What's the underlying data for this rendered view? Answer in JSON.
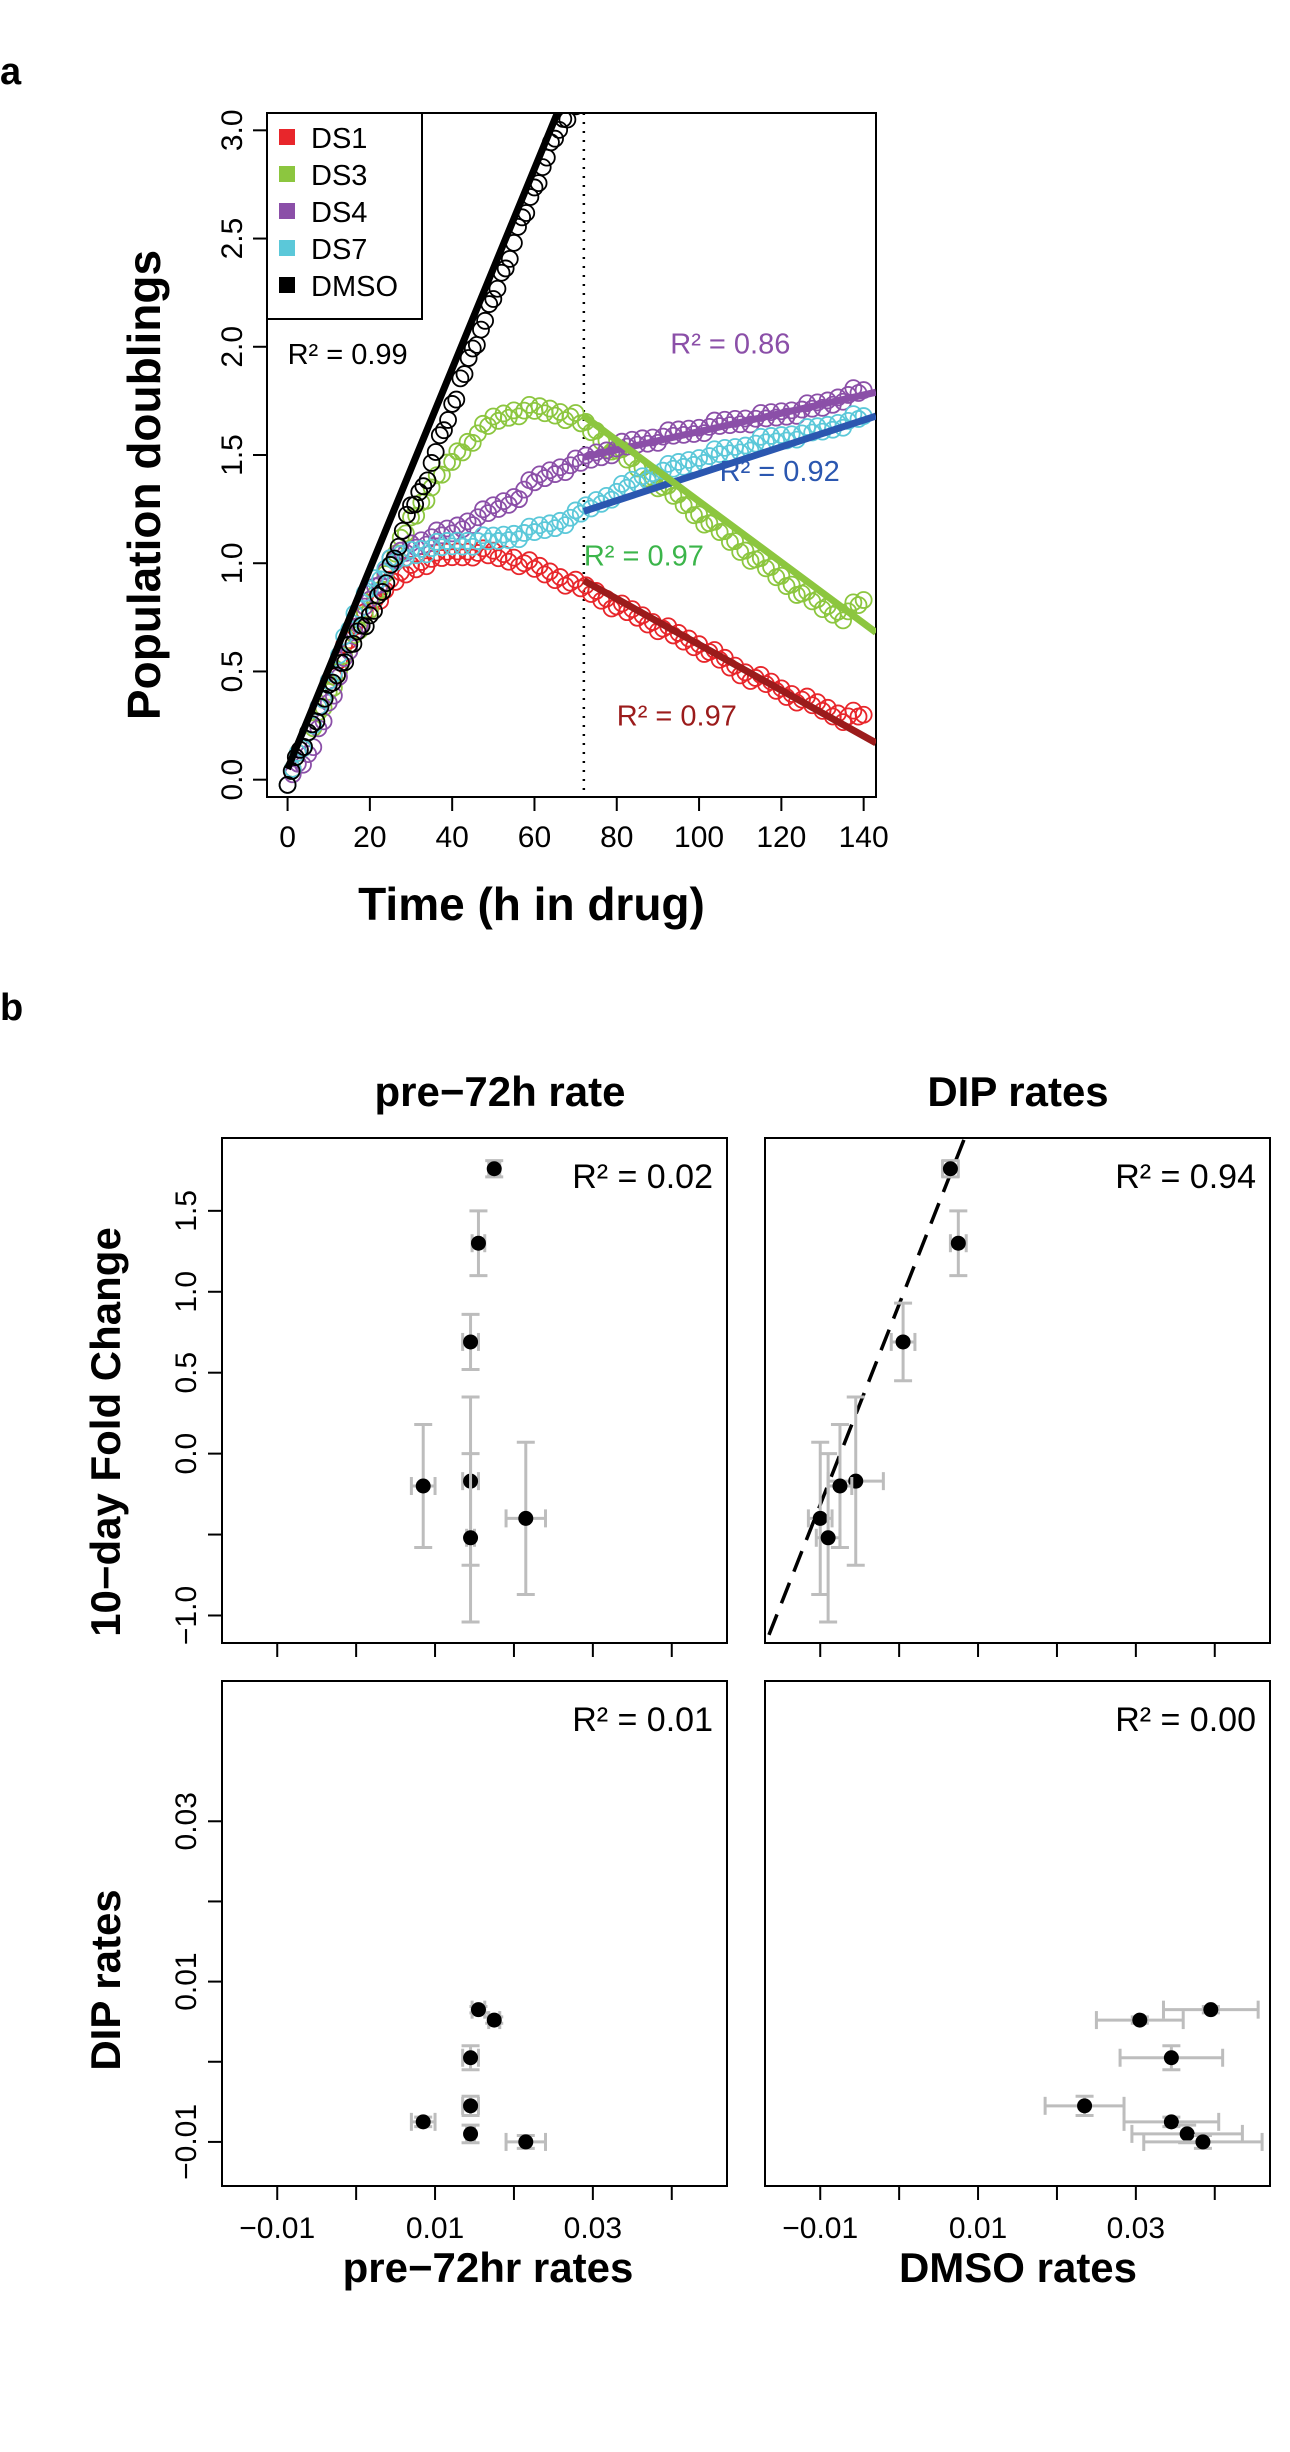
{
  "panel_labels": {
    "a": "a",
    "b": "b"
  },
  "chart_data": [
    {
      "id": "panel-a",
      "type": "scatter",
      "xlabel": "Time (h in drug)",
      "ylabel": "Population doublings",
      "xlim": [
        -5,
        143
      ],
      "ylim": [
        -0.08,
        3.08
      ],
      "xticks": [
        0,
        20,
        40,
        60,
        80,
        100,
        120,
        140
      ],
      "yticks": [
        0.0,
        0.5,
        1.0,
        1.5,
        2.0,
        2.5,
        3.0
      ],
      "tick_labels_y": [
        "0.0",
        "0.5",
        "1.0",
        "1.5",
        "2.0",
        "2.5",
        "3.0"
      ],
      "vline_x": 72,
      "legend": {
        "placement": "top-left",
        "entries": [
          {
            "name": "DS1",
            "color": "#e8262b"
          },
          {
            "name": "DS3",
            "color": "#8cc63f"
          },
          {
            "name": "DS4",
            "color": "#8b4fa8"
          },
          {
            "name": "DS7",
            "color": "#5bc8d9"
          },
          {
            "name": "DMSO",
            "color": "#000000"
          }
        ]
      },
      "series": [
        {
          "name": "DS1",
          "color": "#e8262b",
          "points": [
            [
              0,
              0
            ],
            [
              5,
              0.2
            ],
            [
              10,
              0.45
            ],
            [
              15,
              0.65
            ],
            [
              20,
              0.8
            ],
            [
              25,
              0.9
            ],
            [
              30,
              0.98
            ],
            [
              35,
              1.02
            ],
            [
              40,
              1.04
            ],
            [
              45,
              1.05
            ],
            [
              50,
              1.04
            ],
            [
              55,
              1.02
            ],
            [
              60,
              0.98
            ],
            [
              65,
              0.94
            ],
            [
              70,
              0.9
            ],
            [
              75,
              0.86
            ],
            [
              80,
              0.8
            ],
            [
              85,
              0.76
            ],
            [
              90,
              0.71
            ],
            [
              95,
              0.66
            ],
            [
              100,
              0.62
            ],
            [
              105,
              0.56
            ],
            [
              110,
              0.5
            ],
            [
              115,
              0.46
            ],
            [
              120,
              0.41
            ],
            [
              125,
              0.37
            ],
            [
              130,
              0.33
            ],
            [
              135,
              0.29
            ],
            [
              140,
              0.3
            ]
          ]
        },
        {
          "name": "DS3",
          "color": "#8cc63f",
          "points": [
            [
              0,
              0
            ],
            [
              5,
              0.2
            ],
            [
              10,
              0.4
            ],
            [
              15,
              0.6
            ],
            [
              20,
              0.8
            ],
            [
              25,
              1.0
            ],
            [
              30,
              1.2
            ],
            [
              35,
              1.35
            ],
            [
              40,
              1.48
            ],
            [
              45,
              1.58
            ],
            [
              50,
              1.66
            ],
            [
              55,
              1.7
            ],
            [
              60,
              1.71
            ],
            [
              65,
              1.7
            ],
            [
              70,
              1.67
            ],
            [
              75,
              1.6
            ],
            [
              80,
              1.52
            ],
            [
              85,
              1.45
            ],
            [
              90,
              1.37
            ],
            [
              95,
              1.3
            ],
            [
              100,
              1.22
            ],
            [
              105,
              1.15
            ],
            [
              110,
              1.07
            ],
            [
              115,
              1.0
            ],
            [
              120,
              0.93
            ],
            [
              125,
              0.86
            ],
            [
              130,
              0.8
            ],
            [
              135,
              0.76
            ],
            [
              140,
              0.83
            ]
          ]
        },
        {
          "name": "DS4",
          "color": "#8b4fa8",
          "points": [
            [
              0,
              0
            ],
            [
              5,
              0.1
            ],
            [
              10,
              0.35
            ],
            [
              15,
              0.6
            ],
            [
              20,
              0.85
            ],
            [
              25,
              1.0
            ],
            [
              30,
              1.08
            ],
            [
              35,
              1.12
            ],
            [
              40,
              1.15
            ],
            [
              45,
              1.2
            ],
            [
              50,
              1.25
            ],
            [
              55,
              1.3
            ],
            [
              60,
              1.38
            ],
            [
              65,
              1.43
            ],
            [
              70,
              1.46
            ],
            [
              75,
              1.5
            ],
            [
              80,
              1.53
            ],
            [
              85,
              1.56
            ],
            [
              90,
              1.58
            ],
            [
              95,
              1.6
            ],
            [
              100,
              1.62
            ],
            [
              105,
              1.64
            ],
            [
              110,
              1.66
            ],
            [
              115,
              1.67
            ],
            [
              120,
              1.69
            ],
            [
              125,
              1.71
            ],
            [
              130,
              1.73
            ],
            [
              135,
              1.77
            ],
            [
              140,
              1.8
            ]
          ]
        },
        {
          "name": "DS7",
          "color": "#5bc8d9",
          "points": [
            [
              0,
              0
            ],
            [
              5,
              0.2
            ],
            [
              10,
              0.45
            ],
            [
              15,
              0.7
            ],
            [
              20,
              0.9
            ],
            [
              25,
              1.0
            ],
            [
              30,
              1.05
            ],
            [
              35,
              1.07
            ],
            [
              40,
              1.09
            ],
            [
              45,
              1.1
            ],
            [
              50,
              1.11
            ],
            [
              55,
              1.13
            ],
            [
              60,
              1.15
            ],
            [
              65,
              1.18
            ],
            [
              70,
              1.22
            ],
            [
              75,
              1.28
            ],
            [
              80,
              1.33
            ],
            [
              85,
              1.38
            ],
            [
              90,
              1.42
            ],
            [
              95,
              1.45
            ],
            [
              100,
              1.48
            ],
            [
              105,
              1.51
            ],
            [
              110,
              1.53
            ],
            [
              115,
              1.56
            ],
            [
              120,
              1.58
            ],
            [
              125,
              1.6
            ],
            [
              130,
              1.62
            ],
            [
              135,
              1.65
            ],
            [
              140,
              1.68
            ]
          ]
        },
        {
          "name": "DMSO",
          "color": "#000000",
          "points": [
            [
              0,
              0
            ],
            [
              3,
              0.12
            ],
            [
              6,
              0.25
            ],
            [
              9,
              0.38
            ],
            [
              12,
              0.5
            ],
            [
              15,
              0.6
            ],
            [
              18,
              0.7
            ],
            [
              21,
              0.78
            ],
            [
              24,
              0.92
            ],
            [
              27,
              1.1
            ],
            [
              30,
              1.25
            ],
            [
              33,
              1.35
            ],
            [
              36,
              1.52
            ],
            [
              39,
              1.68
            ],
            [
              42,
              1.83
            ],
            [
              45,
              1.98
            ],
            [
              48,
              2.12
            ],
            [
              51,
              2.28
            ],
            [
              54,
              2.43
            ],
            [
              57,
              2.58
            ],
            [
              60,
              2.73
            ],
            [
              63,
              2.88
            ],
            [
              66,
              3.02
            ],
            [
              69,
              3.1
            ],
            [
              72,
              3.15
            ]
          ]
        }
      ],
      "fits": [
        {
          "name": "DMSO",
          "color": "#000000",
          "x": [
            0,
            66
          ],
          "y": [
            0.05,
            3.1
          ],
          "label": "R² =  0.99"
        },
        {
          "name": "DS4",
          "color": "#8b4fa8",
          "x": [
            72,
            143
          ],
          "y": [
            1.49,
            1.79
          ],
          "label": "R² =  0.86"
        },
        {
          "name": "DS7",
          "color": "#2b57b0",
          "x": [
            72,
            143
          ],
          "y": [
            1.24,
            1.68
          ],
          "label": "R² =  0.92"
        },
        {
          "name": "DS3",
          "color": "#3bb54a",
          "x": [
            72,
            143
          ],
          "y": [
            1.68,
            0.68
          ],
          "label": "R² =  0.97",
          "line_color": "#8cc63f"
        },
        {
          "name": "DS1",
          "color": "#9b1b1b",
          "x": [
            72,
            143
          ],
          "y": [
            0.92,
            0.17
          ],
          "label": "R² =  0.97"
        }
      ],
      "fit_labels": [
        {
          "text": "R² =  0.99",
          "color": "#000000",
          "x": 0,
          "y": 1.92
        },
        {
          "text": "R² =  0.86",
          "color": "#8b4fa8",
          "x": 93,
          "y": 1.97
        },
        {
          "text": "R² =  0.92",
          "color": "#2b57b0",
          "x": 105,
          "y": 1.38
        },
        {
          "text": "R² =  0.97",
          "color": "#3bb54a",
          "x": 72,
          "y": 0.99
        },
        {
          "text": "R² =  0.97",
          "color": "#9b1b1b",
          "x": 80,
          "y": 0.25
        }
      ]
    },
    {
      "id": "panel-b-tl",
      "type": "scatter",
      "title": "pre−72h rate",
      "ylabel": "10−day Fold Change",
      "xlim": [
        -0.017,
        0.047
      ],
      "ylim": [
        -1.17,
        1.95
      ],
      "yticks": [
        -1.0,
        0.0,
        0.5,
        1.0,
        1.5
      ],
      "ytick_labels": [
        "−1.0",
        "0.0",
        "0.5",
        "1.0",
        "1.5"
      ],
      "annotation": "R² =  0.02",
      "points": [
        {
          "x": 0.0175,
          "y": 1.76,
          "xerr": 0.0007,
          "yerr": 0.05
        },
        {
          "x": 0.0155,
          "y": 1.3,
          "xerr": 0.0008,
          "yerr": 0.2
        },
        {
          "x": 0.0145,
          "y": 0.69,
          "xerr": 0.001,
          "yerr": 0.17
        },
        {
          "x": 0.0145,
          "y": -0.17,
          "xerr": 0.001,
          "yerr": 0.52
        },
        {
          "x": 0.0085,
          "y": -0.2,
          "xerr": 0.0015,
          "yerr": 0.38
        },
        {
          "x": 0.0145,
          "y": -0.52,
          "xerr": 0.0005,
          "yerr": 0.52
        },
        {
          "x": 0.0215,
          "y": -0.4,
          "xerr": 0.0025,
          "yerr": 0.47
        }
      ]
    },
    {
      "id": "panel-b-tr",
      "type": "scatter",
      "title": "DIP rates",
      "xlim": [
        -0.017,
        0.047
      ],
      "ylim": [
        -1.17,
        1.95
      ],
      "annotation": "R² =  0.94",
      "fit_line": {
        "x": [
          -0.0165,
          0.0083
        ],
        "y": [
          -1.12,
          1.95
        ]
      },
      "points": [
        {
          "x": 0.0065,
          "y": 1.76,
          "xerr": 0.001,
          "yerr": 0.05
        },
        {
          "x": 0.0075,
          "y": 1.3,
          "xerr": 0.001,
          "yerr": 0.2
        },
        {
          "x": 0.0005,
          "y": 0.69,
          "xerr": 0.0015,
          "yerr": 0.24
        },
        {
          "x": -0.0055,
          "y": -0.17,
          "xerr": 0.0035,
          "yerr": 0.52
        },
        {
          "x": -0.0075,
          "y": -0.2,
          "xerr": 0.0015,
          "yerr": 0.38
        },
        {
          "x": -0.01,
          "y": -0.4,
          "xerr": 0.0015,
          "yerr": 0.47
        },
        {
          "x": -0.009,
          "y": -0.52,
          "xerr": 0.0015,
          "yerr": 0.52
        }
      ]
    },
    {
      "id": "panel-b-bl",
      "type": "scatter",
      "xlabel": "pre−72hr rates",
      "ylabel": "DIP rates",
      "xlim": [
        -0.017,
        0.047
      ],
      "ylim": [
        -0.0155,
        0.0475
      ],
      "xticks": [
        -0.01,
        0.01,
        0.03
      ],
      "xtick_labels": [
        "−0.01",
        "0.01",
        "0.03"
      ],
      "yticks": [
        -0.01,
        0.01,
        0.03
      ],
      "ytick_labels": [
        "−0.01",
        "0.01",
        "0.03"
      ],
      "annotation": "R² =  0.01",
      "points": [
        {
          "x": 0.0155,
          "y": 0.0065,
          "xerr": 0.0008,
          "yerr": 0.0004
        },
        {
          "x": 0.0175,
          "y": 0.0052,
          "xerr": 0.0007,
          "yerr": 0.0004
        },
        {
          "x": 0.0145,
          "y": 0.0005,
          "xerr": 0.001,
          "yerr": 0.0015
        },
        {
          "x": 0.0145,
          "y": -0.0055,
          "xerr": 0.001,
          "yerr": 0.0012
        },
        {
          "x": 0.0085,
          "y": -0.0075,
          "xerr": 0.0015,
          "yerr": 0.0006
        },
        {
          "x": 0.0145,
          "y": -0.009,
          "xerr": 0.0005,
          "yerr": 0.0011
        },
        {
          "x": 0.0215,
          "y": -0.01,
          "xerr": 0.0025,
          "yerr": 0.0008
        }
      ]
    },
    {
      "id": "panel-b-br",
      "type": "scatter",
      "xlabel": "DMSO rates",
      "xlim": [
        -0.017,
        0.047
      ],
      "ylim": [
        -0.0155,
        0.0475
      ],
      "xticks": [
        -0.01,
        0.01,
        0.03
      ],
      "xtick_labels": [
        "−0.01",
        "0.01",
        "0.03"
      ],
      "annotation": "R² =  0.00",
      "points": [
        {
          "x": 0.0395,
          "y": 0.0065,
          "xerr": 0.006,
          "yerr": 0.0004
        },
        {
          "x": 0.0305,
          "y": 0.0052,
          "xerr": 0.0055,
          "yerr": 0.0004
        },
        {
          "x": 0.0345,
          "y": 0.0005,
          "xerr": 0.0065,
          "yerr": 0.0015
        },
        {
          "x": 0.0235,
          "y": -0.0055,
          "xerr": 0.005,
          "yerr": 0.0012
        },
        {
          "x": 0.0345,
          "y": -0.0075,
          "xerr": 0.006,
          "yerr": 0.0006
        },
        {
          "x": 0.0365,
          "y": -0.009,
          "xerr": 0.007,
          "yerr": 0.0011
        },
        {
          "x": 0.0385,
          "y": -0.01,
          "xerr": 0.0075,
          "yerr": 0.0008
        }
      ]
    }
  ]
}
